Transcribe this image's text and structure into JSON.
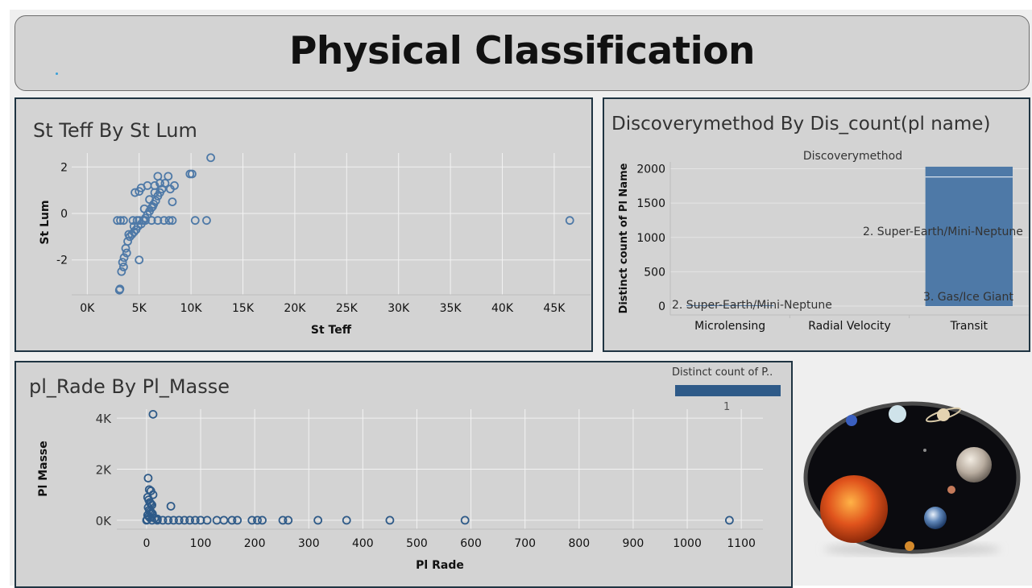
{
  "header": {
    "title": "Physical Classification"
  },
  "panels": {
    "teff": {
      "title": "St Teff By St Lum"
    },
    "disc": {
      "title": "Discoverymethod By Dis_count(pl name)"
    },
    "rade": {
      "title": "pl_Rade By Pl_Masse"
    }
  },
  "legend": {
    "title": "Distinct count of P..",
    "value_label": "1",
    "color": "#2e5a88"
  },
  "image": {
    "description": "solar-system-planets-icon"
  },
  "colors": {
    "mark": "#4e79a7",
    "bar": "#4e79a7",
    "mark_dark": "#2e5a88"
  },
  "chart_data": [
    {
      "type": "scatter",
      "xlabel": "St Teff",
      "ylabel": "St Lum",
      "xlim": [
        -1500,
        48500
      ],
      "ylim": [
        -3.5,
        2.6
      ],
      "xticks": [
        0,
        5000,
        10000,
        15000,
        20000,
        25000,
        30000,
        35000,
        40000,
        45000
      ],
      "xtick_labels": [
        "0K",
        "5K",
        "10K",
        "15K",
        "20K",
        "25K",
        "30K",
        "35K",
        "40K",
        "45K"
      ],
      "yticks": [
        2,
        0,
        -2
      ],
      "ytick_labels": [
        "2",
        "0",
        "-2"
      ],
      "points": [
        [
          3100,
          -3.3
        ],
        [
          3150,
          -3.25
        ],
        [
          3300,
          -2.5
        ],
        [
          3500,
          -2.3
        ],
        [
          3400,
          -2.1
        ],
        [
          3550,
          -1.9
        ],
        [
          3800,
          -1.7
        ],
        [
          3700,
          -1.5
        ],
        [
          3900,
          -1.2
        ],
        [
          4100,
          -1.0
        ],
        [
          4300,
          -0.9
        ],
        [
          4500,
          -0.8
        ],
        [
          4700,
          -0.7
        ],
        [
          4900,
          -0.55
        ],
        [
          5200,
          -0.45
        ],
        [
          5400,
          -0.3
        ],
        [
          5600,
          -0.2
        ],
        [
          5800,
          -0.05
        ],
        [
          6000,
          0.1
        ],
        [
          6200,
          0.25
        ],
        [
          6400,
          0.4
        ],
        [
          6600,
          0.55
        ],
        [
          6800,
          0.75
        ],
        [
          7000,
          0.9
        ],
        [
          7200,
          1.05
        ],
        [
          5000,
          -0.3
        ],
        [
          4500,
          -0.55
        ],
        [
          4000,
          -0.9
        ],
        [
          5500,
          0.2
        ],
        [
          6000,
          0.6
        ],
        [
          6500,
          0.9
        ],
        [
          7500,
          1.3
        ],
        [
          8000,
          1.05
        ],
        [
          8200,
          0.5
        ],
        [
          7800,
          1.6
        ],
        [
          8400,
          1.2
        ],
        [
          4600,
          0.9
        ],
        [
          5200,
          1.1
        ],
        [
          5800,
          1.2
        ],
        [
          6300,
          0.3
        ],
        [
          4400,
          -0.3
        ],
        [
          4800,
          -0.3
        ],
        [
          3500,
          -0.3
        ],
        [
          2900,
          -0.3
        ],
        [
          3200,
          -0.3
        ],
        [
          5600,
          -0.3
        ],
        [
          6200,
          -0.3
        ],
        [
          6800,
          -0.3
        ],
        [
          7400,
          -0.3
        ],
        [
          7900,
          -0.3
        ],
        [
          8200,
          -0.3
        ],
        [
          5000,
          -2.0
        ],
        [
          6800,
          1.6
        ],
        [
          6500,
          1.2
        ],
        [
          7000,
          1.3
        ],
        [
          5000,
          0.95
        ],
        [
          9900,
          1.7
        ],
        [
          10100,
          1.7
        ],
        [
          11900,
          2.4
        ],
        [
          10400,
          -0.3
        ],
        [
          11500,
          -0.3
        ],
        [
          46500,
          -0.3
        ]
      ]
    },
    {
      "type": "bar",
      "title": "Discoverymethod",
      "xlabel": "",
      "ylabel": "Distinct count of Pl Name",
      "categories": [
        "Microlensing",
        "Radial Velocity",
        "Transit"
      ],
      "ylim": [
        0,
        2100
      ],
      "yticks": [
        0,
        500,
        1000,
        1500,
        2000
      ],
      "ytick_labels": [
        "0",
        "500",
        "1000",
        "1500",
        "2000"
      ],
      "series": [
        {
          "name": "2. Super-Earth/Mini-Neptune",
          "values": [
            1,
            0,
            1880
          ]
        },
        {
          "name": "3. Gas/Ice Giant",
          "values": [
            0,
            0,
            150
          ]
        }
      ],
      "bar_labels": {
        "microlensing": "2. Super-Earth/Mini-Neptune",
        "transit_upper": "2. Super-Earth/Mini-Neptune",
        "transit_lower": "3. Gas/Ice Giant"
      }
    },
    {
      "type": "scatter",
      "xlabel": "Pl Rade",
      "ylabel": "Pl Masse",
      "xlim": [
        -55,
        1140
      ],
      "ylim": [
        -350,
        4350
      ],
      "xticks": [
        0,
        100,
        200,
        300,
        400,
        500,
        600,
        700,
        800,
        900,
        1000,
        1100
      ],
      "xtick_labels": [
        "0",
        "100",
        "200",
        "300",
        "400",
        "500",
        "600",
        "700",
        "800",
        "900",
        "1000",
        "1100"
      ],
      "yticks": [
        4000,
        2000,
        0
      ],
      "ytick_labels": [
        "4K",
        "2K",
        "0K"
      ],
      "points": [
        [
          12,
          4150
        ],
        [
          3,
          1650
        ],
        [
          5,
          1200
        ],
        [
          8,
          1150
        ],
        [
          12,
          1000
        ],
        [
          2,
          900
        ],
        [
          4,
          800
        ],
        [
          6,
          700
        ],
        [
          8,
          650
        ],
        [
          10,
          600
        ],
        [
          3,
          500
        ],
        [
          5,
          400
        ],
        [
          7,
          350
        ],
        [
          9,
          300
        ],
        [
          11,
          250
        ],
        [
          2,
          200
        ],
        [
          4,
          150
        ],
        [
          6,
          100
        ],
        [
          15,
          80
        ],
        [
          20,
          50
        ],
        [
          1,
          20
        ],
        [
          0,
          0
        ],
        [
          10,
          0
        ],
        [
          20,
          0
        ],
        [
          30,
          0
        ],
        [
          40,
          0
        ],
        [
          45,
          550
        ],
        [
          50,
          0
        ],
        [
          60,
          0
        ],
        [
          70,
          0
        ],
        [
          80,
          0
        ],
        [
          90,
          0
        ],
        [
          100,
          0
        ],
        [
          112,
          0
        ],
        [
          130,
          0
        ],
        [
          143,
          0
        ],
        [
          158,
          0
        ],
        [
          168,
          0
        ],
        [
          195,
          0
        ],
        [
          205,
          0
        ],
        [
          214,
          0
        ],
        [
          252,
          0
        ],
        [
          262,
          0
        ],
        [
          317,
          0
        ],
        [
          370,
          0
        ],
        [
          450,
          0
        ],
        [
          589,
          0
        ],
        [
          1078,
          0
        ]
      ]
    }
  ]
}
